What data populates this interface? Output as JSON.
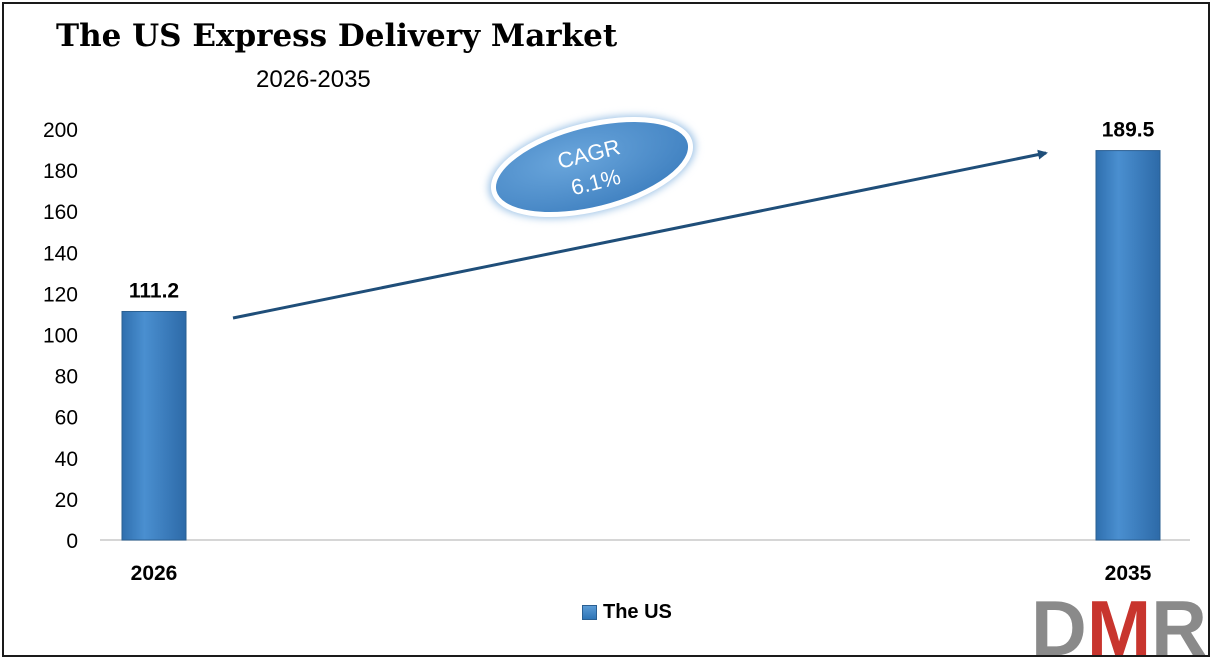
{
  "chart_data": {
    "type": "bar",
    "title": "The US Express Delivery Market",
    "subtitle": "2026-2035",
    "categories": [
      "2026",
      "2035"
    ],
    "series": [
      {
        "name": "The US",
        "values": [
          111.2,
          189.5
        ],
        "labels": [
          "111.2",
          "189.5"
        ]
      }
    ],
    "ylim": [
      0,
      200
    ],
    "yticks": [
      0,
      20,
      40,
      60,
      80,
      100,
      120,
      140,
      160,
      180,
      200
    ],
    "grid": false,
    "legend_position": "bottom-center",
    "annotation": {
      "line1": "CAGR",
      "line2": "6.1%"
    },
    "bar_color": "#3a7fc4"
  },
  "logo": {
    "text": "DMR",
    "colors": [
      "#8a8a8a",
      "#c8352e",
      "#8a8a8a"
    ]
  }
}
